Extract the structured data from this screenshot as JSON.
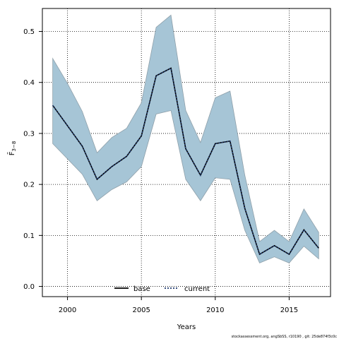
{
  "chart_data": {
    "type": "area",
    "xlabel": "Years",
    "ylabel": "F̄",
    "ylabel_subscript": "3−8",
    "xlim": [
      1998.3,
      2017.8
    ],
    "ylim": [
      -0.02,
      0.545
    ],
    "xticks": [
      2000,
      2005,
      2010,
      2015
    ],
    "yticks": [
      0.0,
      0.1,
      0.2,
      0.3,
      0.4,
      0.5
    ],
    "ytick_labels": [
      "0.0",
      "0.1",
      "0.2",
      "0.3",
      "0.4",
      "0.5"
    ],
    "grid": true,
    "legend_placement": "bottom-center",
    "x": [
      1999,
      2000,
      2001,
      2002,
      2003,
      2004,
      2005,
      2006,
      2007,
      2008,
      2009,
      2010,
      2011,
      2012,
      2013,
      2014,
      2015,
      2016,
      2017
    ],
    "band": {
      "upper": [
        0.447,
        0.398,
        0.343,
        0.262,
        0.292,
        0.31,
        0.36,
        0.508,
        0.532,
        0.345,
        0.282,
        0.37,
        0.383,
        0.218,
        0.088,
        0.11,
        0.088,
        0.152,
        0.106
      ],
      "lower": [
        0.28,
        0.25,
        0.22,
        0.168,
        0.19,
        0.205,
        0.235,
        0.338,
        0.345,
        0.21,
        0.168,
        0.213,
        0.21,
        0.11,
        0.046,
        0.058,
        0.046,
        0.079,
        0.054
      ],
      "color": "#a6c5d6",
      "edge_color": "#8fa0aa"
    },
    "series": [
      {
        "name": "base",
        "style": "solid",
        "color": "#000000",
        "values": [
          0.355,
          0.315,
          0.275,
          0.21,
          0.235,
          0.255,
          0.295,
          0.413,
          0.428,
          0.27,
          0.218,
          0.28,
          0.285,
          0.153,
          0.063,
          0.08,
          0.063,
          0.111,
          0.075
        ]
      },
      {
        "name": "current",
        "style": "dotted",
        "color": "#1f3a6e",
        "values": [
          0.355,
          0.315,
          0.275,
          0.21,
          0.235,
          0.255,
          0.295,
          0.413,
          0.428,
          0.27,
          0.218,
          0.28,
          0.285,
          0.153,
          0.063,
          0.08,
          0.063,
          0.111,
          0.075
        ]
      }
    ]
  },
  "footer": "stockassessment.org, angSbSS, r10190 , git: 25de874f3c0c"
}
